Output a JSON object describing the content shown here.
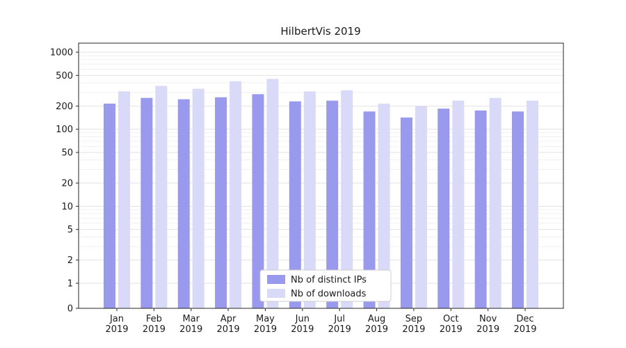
{
  "chart_data": {
    "type": "bar",
    "title": "HilbertVis 2019",
    "categories": [
      "Jan",
      "Feb",
      "Mar",
      "Apr",
      "May",
      "Jun",
      "Jul",
      "Aug",
      "Sep",
      "Oct",
      "Nov",
      "Dec"
    ],
    "year_label": "2019",
    "series": [
      {
        "name": "Nb of distinct IPs",
        "color": "#9999ee",
        "values": [
          215,
          255,
          245,
          260,
          285,
          230,
          235,
          170,
          142,
          185,
          175,
          170
        ]
      },
      {
        "name": "Nb of downloads",
        "color": "#d9d9f8",
        "values": [
          310,
          365,
          335,
          420,
          450,
          310,
          320,
          215,
          200,
          235,
          255,
          235
        ]
      }
    ],
    "yscale": "log (symlog with 0 at baseline)",
    "yticks": [
      0,
      1,
      2,
      5,
      10,
      20,
      50,
      100,
      200,
      500,
      1000
    ],
    "ylim": [
      0,
      1300
    ],
    "xlabel": "",
    "ylabel": "",
    "grid": true,
    "legend_position": "lower center inside plot"
  },
  "colors": {
    "distinct_ips": "#9999ee",
    "downloads": "#d9d9f8",
    "major_grid": "#e2e2e2",
    "minor_grid": "#f1f1f1",
    "frame": "#262626",
    "text": "#1a1a1a",
    "legend_border": "#cccccc",
    "background": "#ffffff"
  }
}
